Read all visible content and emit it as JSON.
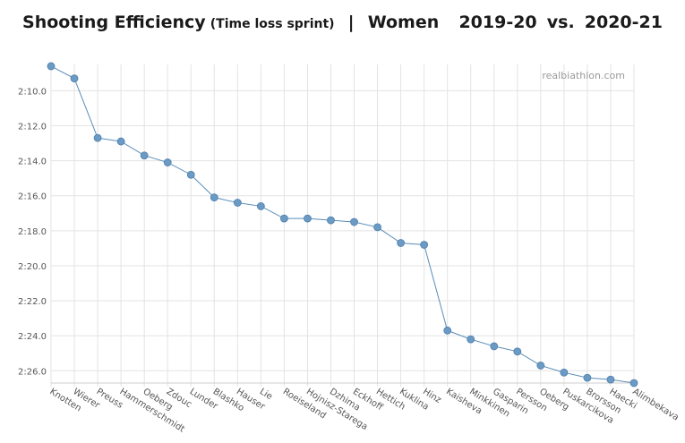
{
  "title": {
    "main": "Shooting Efficiency",
    "sub": "(Time loss sprint)",
    "separator": "|",
    "group": "Women",
    "season_a": "2019-20",
    "vs": "vs.",
    "season_b": "2020-21"
  },
  "watermark": "realbiathlon.com",
  "colors": {
    "line": "#5b8db8",
    "marker": "#6b9ac4",
    "grid": "#e3e3e3"
  },
  "chart_data": {
    "type": "line",
    "title": "Shooting Efficiency (Time loss sprint) | Women 2019-20 vs. 2020-21",
    "xlabel": "",
    "ylabel": "",
    "y_reversed": true,
    "ylim_seconds": [
      128.5,
      146.7
    ],
    "y_ticks": [
      {
        "label": "2:10.0",
        "value": 130
      },
      {
        "label": "2:12.0",
        "value": 132
      },
      {
        "label": "2:14.0",
        "value": 134
      },
      {
        "label": "2:16.0",
        "value": 136
      },
      {
        "label": "2:18.0",
        "value": 138
      },
      {
        "label": "2:20.0",
        "value": 140
      },
      {
        "label": "2:22.0",
        "value": 142
      },
      {
        "label": "2:24.0",
        "value": 144
      },
      {
        "label": "2:26.0",
        "value": 146
      }
    ],
    "grid": true,
    "categories": [
      "Knotten",
      "Wierer",
      "Preuss",
      "Hammerschmidt",
      "Oeberg",
      "Zdouc",
      "Lunder",
      "Blashko",
      "Hauser",
      "Lie",
      "Roeiseland",
      "Hojnisz-Starega",
      "Dzhima",
      "Eckhoff",
      "Hettich",
      "Kuklina",
      "Hinz",
      "Kaisheva",
      "Minkkinen",
      "Gasparin",
      "Persson",
      "Oeberg",
      "Puskarcikova",
      "Brorsson",
      "Haecki",
      "Alimbekava"
    ],
    "values": [
      128.6,
      129.3,
      132.7,
      132.9,
      133.7,
      134.1,
      134.8,
      136.1,
      136.4,
      136.6,
      137.3,
      137.3,
      137.4,
      137.5,
      137.8,
      138.7,
      138.8,
      143.7,
      144.2,
      144.6,
      144.9,
      145.7,
      146.1,
      146.4,
      146.5,
      146.7
    ]
  }
}
